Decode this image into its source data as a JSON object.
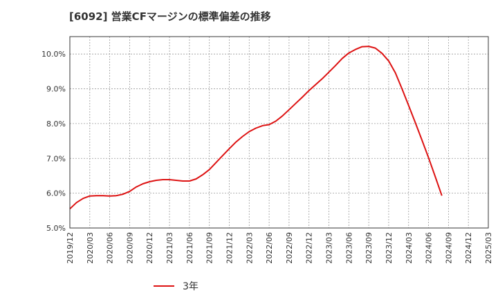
{
  "chart_data": {
    "type": "line",
    "title": "[6092]  営業CFマージンの標準偏差の推移",
    "x_ticks": [
      "2019/12",
      "2020/03",
      "2020/06",
      "2020/09",
      "2020/12",
      "2021/03",
      "2021/06",
      "2021/09",
      "2021/12",
      "2022/03",
      "2022/06",
      "2022/09",
      "2022/12",
      "2023/03",
      "2023/06",
      "2023/09",
      "2023/12",
      "2024/03",
      "2024/06",
      "2024/09",
      "2024/12",
      "2025/03"
    ],
    "y_ticks": [
      "5.0%",
      "6.0%",
      "7.0%",
      "8.0%",
      "9.0%",
      "10.0%"
    ],
    "ylim": [
      5.0,
      10.5
    ],
    "grid": true,
    "legend_position": "bottom",
    "series": [
      {
        "name": "3年",
        "color": "#dd1111",
        "points": [
          [
            "2019/12",
            5.55
          ],
          [
            "2020/01",
            5.73
          ],
          [
            "2020/02",
            5.85
          ],
          [
            "2020/03",
            5.92
          ],
          [
            "2020/04",
            5.93
          ],
          [
            "2020/05",
            5.93
          ],
          [
            "2020/06",
            5.92
          ],
          [
            "2020/07",
            5.93
          ],
          [
            "2020/08",
            5.97
          ],
          [
            "2020/09",
            6.05
          ],
          [
            "2020/10",
            6.18
          ],
          [
            "2020/11",
            6.27
          ],
          [
            "2020/12",
            6.33
          ],
          [
            "2021/01",
            6.37
          ],
          [
            "2021/02",
            6.39
          ],
          [
            "2021/03",
            6.39
          ],
          [
            "2021/04",
            6.37
          ],
          [
            "2021/05",
            6.35
          ],
          [
            "2021/06",
            6.35
          ],
          [
            "2021/07",
            6.41
          ],
          [
            "2021/08",
            6.53
          ],
          [
            "2021/09",
            6.68
          ],
          [
            "2021/10",
            6.88
          ],
          [
            "2021/11",
            7.08
          ],
          [
            "2021/12",
            7.28
          ],
          [
            "2021/13",
            7.47
          ],
          [
            "2022/02",
            7.63
          ],
          [
            "2022/03",
            7.77
          ],
          [
            "2022/04",
            7.87
          ],
          [
            "2022/05",
            7.94
          ],
          [
            "2022/06",
            7.97
          ],
          [
            "2022/07",
            8.07
          ],
          [
            "2022/08",
            8.22
          ],
          [
            "2022/09",
            8.4
          ],
          [
            "2022/10",
            8.58
          ],
          [
            "2022/11",
            8.76
          ],
          [
            "2022/12",
            8.95
          ],
          [
            "2023/01",
            9.12
          ],
          [
            "2023/02",
            9.29
          ],
          [
            "2023/03",
            9.48
          ],
          [
            "2023/04",
            9.67
          ],
          [
            "2023/05",
            9.87
          ],
          [
            "2023/06",
            10.03
          ],
          [
            "2023/07",
            10.13
          ],
          [
            "2023/08",
            10.21
          ],
          [
            "2023/09",
            10.22
          ],
          [
            "2023/10",
            10.17
          ],
          [
            "2023/11",
            10.02
          ],
          [
            "2023/12",
            9.8
          ],
          [
            "2024/01",
            9.46
          ],
          [
            "2024/02",
            9.0
          ],
          [
            "2024/03",
            8.52
          ],
          [
            "2024/04",
            8.03
          ],
          [
            "2024/05",
            7.53
          ],
          [
            "2024/06",
            7.02
          ],
          [
            "2024/07",
            6.48
          ],
          [
            "2024/08",
            5.93
          ]
        ]
      }
    ]
  }
}
